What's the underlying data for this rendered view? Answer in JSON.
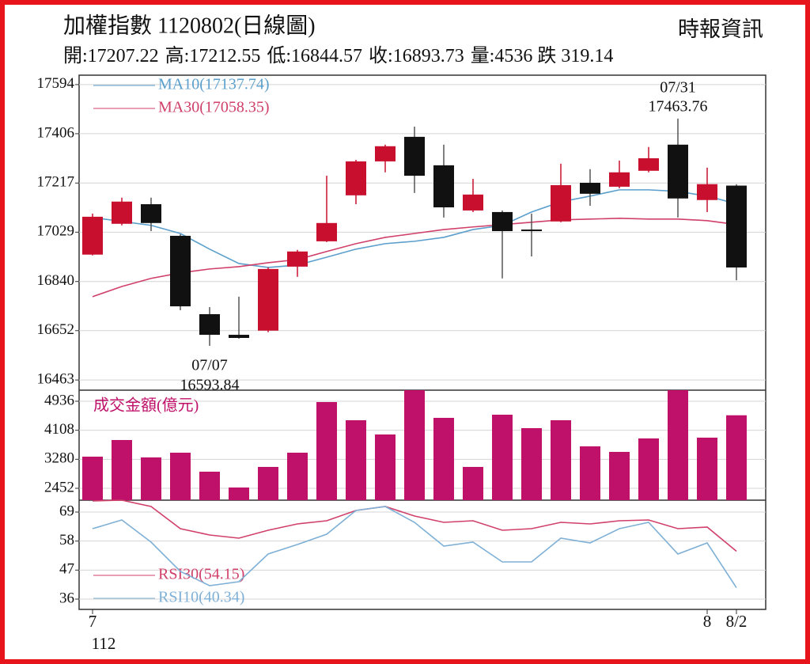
{
  "chart_data": {
    "type": "candlestick",
    "title": "加權指數 1120802(日線圖)",
    "source": "時報資訊",
    "stats_labels": {
      "open": "開:",
      "high": "高:",
      "low": "低:",
      "close": "收:",
      "volume": "量:",
      "change": "跌"
    },
    "change": 319.14,
    "categories": [
      "7",
      null,
      null,
      null,
      null,
      null,
      null,
      null,
      null,
      null,
      null,
      null,
      null,
      null,
      null,
      null,
      null,
      null,
      null,
      null,
      null,
      "8",
      "8/2"
    ],
    "x_sublabel": "112",
    "annotations": {
      "low_date": "07/07",
      "high_date": "07/31"
    },
    "ylim": [
      16424,
      17630
    ],
    "yticks": [
      17594,
      17406,
      17217,
      17029,
      16840,
      16652,
      16463
    ],
    "grid": true,
    "up_color": "#c8102e",
    "down_color": "#111111",
    "candles": {
      "open": [
        16943,
        17061,
        17136,
        17015,
        16715,
        16636,
        16652,
        16897,
        16994,
        17170,
        17300,
        17394,
        17285,
        17112,
        17106,
        17039,
        17070,
        17218,
        17203,
        17264,
        17364,
        17152,
        17207.22
      ],
      "high": [
        17100,
        17161,
        17161,
        17021,
        16742,
        16782,
        16894,
        16961,
        17245,
        17306,
        17364,
        17433,
        17364,
        17233,
        17112,
        17100,
        17291,
        17270,
        17303,
        17355,
        17463.76,
        17276,
        17212.55
      ],
      "low": [
        16940,
        17055,
        17033,
        16730,
        16593.84,
        16621,
        16646,
        16858,
        16991,
        17136,
        17258,
        17179,
        17085,
        17106,
        16852,
        16936,
        17067,
        17130,
        17197,
        17258,
        17085,
        17106,
        16844.57
      ],
      "close": [
        17088,
        17146,
        17064,
        16745,
        16636,
        16624,
        16888,
        16955,
        17064,
        17300,
        17358,
        17245,
        17124,
        17173,
        17033,
        17036,
        17209,
        17176,
        17258,
        17312,
        17158,
        17212.87,
        16893.73
      ]
    },
    "ma": [
      {
        "name": "MA10(17137.74)",
        "color": "#5b9fcc",
        "values": [
          17085,
          17070,
          17055,
          17024,
          16964,
          16909,
          16894,
          16903,
          16933,
          16964,
          16985,
          16994,
          17009,
          17039,
          17055,
          17106,
          17145,
          17167,
          17191,
          17191,
          17185,
          17167,
          17137.74
        ]
      },
      {
        "name": "MA30(17058.35)",
        "color": "#d0406a",
        "values": [
          16782,
          16821,
          16852,
          16873,
          16888,
          16897,
          16912,
          16924,
          16955,
          16985,
          17009,
          17024,
          17039,
          17049,
          17058,
          17067,
          17076,
          17079,
          17082,
          17079,
          17079,
          17073,
          17058.35
        ]
      }
    ],
    "volume": {
      "label": "成交金額(億元)",
      "color": "#c0116a",
      "ylim": [
        2113,
        5252
      ],
      "yticks": [
        4936,
        4108,
        3280,
        2452
      ],
      "values": [
        3355,
        3830,
        3333,
        3468,
        2926,
        2475,
        3062,
        3468,
        4913,
        4394,
        3988,
        5252,
        4462,
        3062,
        4552,
        4168,
        4394,
        3649,
        3491,
        3875,
        5252,
        3897,
        4536
      ]
    },
    "rsi": {
      "ylim": [
        32.1,
        73.5
      ],
      "yticks": [
        69,
        58,
        47,
        36
      ],
      "series": [
        {
          "name": "RSI30(54.15)",
          "color": "#d0406a",
          "values": [
            73.2,
            73.5,
            71.1,
            62.7,
            60.3,
            59.1,
            62.1,
            64.5,
            65.7,
            69.6,
            71.1,
            67.5,
            65.1,
            65.7,
            62.1,
            62.7,
            65.1,
            64.5,
            65.7,
            66.0,
            62.7,
            63.3,
            54.15
          ]
        },
        {
          "name": "RSI10(40.34)",
          "color": "#7fb0d6",
          "values": [
            62.7,
            66.0,
            57.6,
            46.5,
            41.1,
            42.6,
            53.1,
            56.7,
            60.6,
            69.6,
            71.1,
            65.1,
            56.1,
            57.6,
            50.1,
            50.1,
            59.1,
            57.3,
            62.7,
            65.1,
            53.1,
            57.3,
            40.34
          ]
        }
      ]
    }
  }
}
